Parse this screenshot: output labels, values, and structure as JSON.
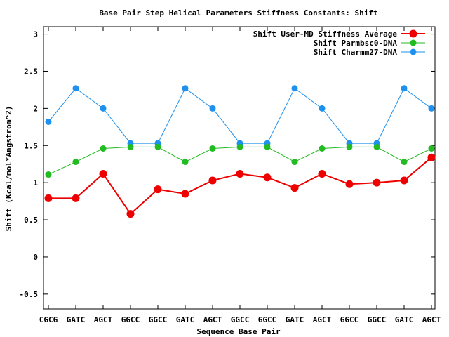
{
  "chart_data": {
    "type": "line",
    "title": "Base Pair Step Helical Parameters Stiffness Constants: Shift",
    "xlabel": "Sequence Base Pair",
    "ylabel": "Shift (Kcal/mol*Angstrom^2)",
    "ylim": [
      -0.7,
      3.1
    ],
    "yticks": [
      "-0.5",
      "0",
      "0.5",
      "1",
      "1.5",
      "2",
      "2.5",
      "3"
    ],
    "ytick_values": [
      -0.5,
      0,
      0.5,
      1,
      1.5,
      2,
      2.5,
      3
    ],
    "categories": [
      "CGCG",
      "GATC",
      "AGCT",
      "GGCC",
      "GGCC",
      "GATC",
      "AGCT",
      "GGCC",
      "GGCC",
      "GATC",
      "AGCT",
      "GGCC",
      "GGCC",
      "GATC",
      "AGCT"
    ],
    "grid": false,
    "legend_position": "top-right",
    "series": [
      {
        "name": "Shift User-MD Stiffness Average",
        "color": "#ee0000",
        "values": [
          0.79,
          0.79,
          1.12,
          0.58,
          0.91,
          0.85,
          1.03,
          1.12,
          1.07,
          0.93,
          1.12,
          0.98,
          1.0,
          1.03,
          1.34
        ]
      },
      {
        "name": "Shift Parmbsc0-DNA",
        "color": "#22bb22",
        "values": [
          1.11,
          1.28,
          1.46,
          1.48,
          1.48,
          1.28,
          1.46,
          1.48,
          1.48,
          1.28,
          1.46,
          1.48,
          1.48,
          1.28,
          1.46
        ]
      },
      {
        "name": "Shift Charmm27-DNA",
        "color": "#1e90ee",
        "values": [
          1.82,
          2.27,
          2.0,
          1.53,
          1.53,
          2.27,
          2.0,
          1.53,
          1.53,
          2.27,
          2.0,
          1.53,
          1.53,
          2.27,
          2.0
        ]
      }
    ]
  }
}
